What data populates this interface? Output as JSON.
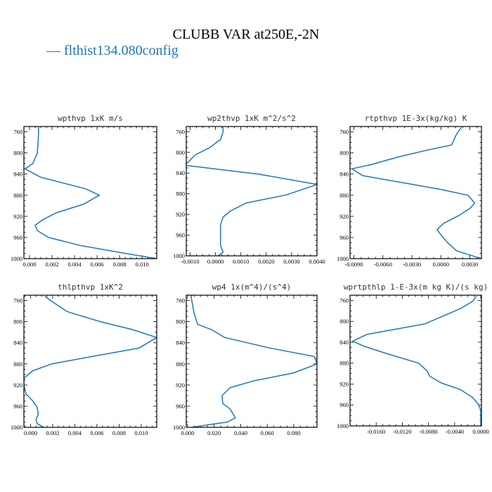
{
  "figure": {
    "title": "CLUBB VAR at250E,-2N",
    "legend": {
      "label": "— flthist134.080config",
      "color": "#1f77b4"
    },
    "line_color": "#1f77b4"
  },
  "chart_data": [
    {
      "type": "line",
      "title": "wpthvp  1xK m/s",
      "xlabel": "",
      "ylabel": "",
      "xlim": [
        -0.0005,
        0.0113
      ],
      "ylim": [
        1000,
        750
      ],
      "xticks": [
        0.0,
        0.002,
        0.004,
        0.006,
        0.008,
        0.01
      ],
      "xticklabels": [
        "0.000",
        "0.002",
        "0.004",
        "0.006",
        "0.008",
        "0.010"
      ],
      "yticks": [
        760,
        800,
        840,
        880,
        920,
        960,
        1000
      ],
      "yticklabels": [
        "760",
        "800",
        "840",
        "880",
        "920",
        "960",
        "1000"
      ],
      "series": [
        {
          "x": [
            0.0008,
            0.0008,
            0.0007,
            0.0003,
            -0.0004,
            0.001,
            0.005,
            0.0062,
            0.0048,
            0.0024,
            0.0012,
            0.0005,
            0.0007,
            0.0017,
            0.0045,
            0.0085,
            0.0113
          ],
          "y": [
            751,
            765,
            800,
            820,
            830,
            846,
            868,
            880,
            897,
            913,
            926,
            937,
            947,
            960,
            975,
            990,
            1000
          ]
        }
      ]
    },
    {
      "type": "line",
      "title": "wp2thvp  1xK m^2/s^2",
      "xlabel": "",
      "ylabel": "",
      "xlim": [
        -0.00115,
        0.004
      ],
      "ylim": [
        1000,
        750
      ],
      "xticks": [
        -0.001,
        0.0,
        0.001,
        0.002,
        0.003,
        0.004
      ],
      "xticklabels": [
        "-0.0010",
        "0.0000",
        "0.0010",
        "0.0020",
        "0.0030",
        "0.0040"
      ],
      "yticks": [
        760,
        800,
        840,
        880,
        920,
        960,
        1000
      ],
      "yticklabels": [
        "760",
        "800",
        "840",
        "880",
        "920",
        "960",
        "1000"
      ],
      "series": [
        {
          "x": [
            0.0003,
            0.0003,
            0.0002,
            -0.0002,
            -0.0008,
            -0.0012,
            0.0017,
            0.004,
            0.0028,
            0.0012,
            0.0006,
            0.0003,
            0.0002,
            0.0002,
            0.0002,
            0.0003,
            0.0001
          ],
          "y": [
            751,
            760,
            775,
            790,
            805,
            825,
            842,
            862,
            882,
            898,
            913,
            925,
            940,
            960,
            980,
            993,
            1000
          ]
        }
      ]
    },
    {
      "type": "line",
      "title": "rtpthvp  1E-3x(kg/kg) K",
      "xlabel": "",
      "ylabel": "",
      "xlim": [
        -0.0094,
        0.0042
      ],
      "ylim": [
        1000,
        750
      ],
      "xticks": [
        -0.009,
        -0.006,
        -0.003,
        0.0,
        0.003
      ],
      "xticklabels": [
        "-0.0090",
        "-0.0060",
        "-0.0030",
        "0.0000",
        "0.0030"
      ],
      "yticks": [
        760,
        800,
        840,
        880,
        920,
        960,
        1000
      ],
      "yticklabels": [
        "760",
        "800",
        "840",
        "880",
        "920",
        "960",
        "1000"
      ],
      "series": [
        {
          "x": [
            0.0021,
            0.0016,
            0.0011,
            -0.0015,
            -0.0045,
            -0.0072,
            -0.0092,
            -0.0081,
            -0.0003,
            0.0028,
            0.0035,
            0.003,
            0.0019,
            0.0003,
            -0.0004,
            0.0,
            0.0006,
            0.0016,
            0.0042
          ],
          "y": [
            752,
            765,
            785,
            795,
            808,
            822,
            830,
            843,
            868,
            880,
            895,
            905,
            918,
            933,
            945,
            955,
            968,
            985,
            1000
          ]
        }
      ]
    },
    {
      "type": "line",
      "title": "thlpthvp  1xK^2",
      "xlabel": "",
      "ylabel": "",
      "xlim": [
        -0.0006,
        0.0114
      ],
      "ylim": [
        1000,
        750
      ],
      "xticks": [
        0.0,
        0.002,
        0.004,
        0.006,
        0.008,
        0.01
      ],
      "xticklabels": [
        "0.000",
        "0.002",
        "0.004",
        "0.006",
        "0.008",
        "0.010"
      ],
      "yticks": [
        760,
        800,
        840,
        880,
        920,
        960,
        1000
      ],
      "yticklabels": [
        "760",
        "800",
        "840",
        "880",
        "920",
        "960",
        "1000"
      ],
      "series": [
        {
          "x": [
            0.0013,
            0.0018,
            0.0033,
            0.0063,
            0.0092,
            0.0114,
            0.0098,
            0.0058,
            0.0019,
            0.0002,
            -0.0006,
            -0.0006,
            -0.0004,
            0.0002,
            0.0006,
            0.0007,
            0.0005,
            0.0006,
            0.0012
          ],
          "y": [
            752,
            760,
            781,
            800,
            815,
            830,
            850,
            865,
            880,
            893,
            907,
            920,
            937,
            950,
            962,
            975,
            985,
            993,
            1000
          ]
        }
      ]
    },
    {
      "type": "line",
      "title": "wp4  1x(m^4)/(s^4)",
      "xlabel": "",
      "ylabel": "",
      "xlim": [
        -0.001,
        0.0975
      ],
      "ylim": [
        1000,
        750
      ],
      "xticks": [
        0.0,
        0.02,
        0.04,
        0.06,
        0.08
      ],
      "xticklabels": [
        "0.000",
        "0.020",
        "0.040",
        "0.060",
        "0.080"
      ],
      "yticks": [
        760,
        800,
        840,
        880,
        920,
        960,
        1000
      ],
      "yticklabels": [
        "760",
        "800",
        "840",
        "880",
        "920",
        "960",
        "1000"
      ],
      "series": [
        {
          "x": [
            0.0025,
            0.0035,
            0.005,
            0.0075,
            0.018,
            0.028,
            0.062,
            0.0955,
            0.0975,
            0.08,
            0.05,
            0.032,
            0.026,
            0.0265,
            0.032,
            0.036,
            0.03,
            0.016,
            0.003
          ],
          "y": [
            750,
            765,
            785,
            805,
            815,
            830,
            850,
            866,
            880,
            897,
            912,
            925,
            940,
            955,
            965,
            982,
            990,
            995,
            1000
          ]
        }
      ]
    },
    {
      "type": "line",
      "title": "wprtpthlp  1-E-3x(m kg K)/(s kg)",
      "xlabel": "",
      "ylabel": "",
      "xlim": [
        -0.02,
        0.0001
      ],
      "ylim": [
        1000,
        750
      ],
      "xticks": [
        -0.016,
        -0.012,
        -0.008,
        -0.004,
        0.0
      ],
      "xticklabels": [
        "-0.0160",
        "-0.0120",
        "-0.0080",
        "-0.0040",
        "0.0000"
      ],
      "yticks": [
        760,
        800,
        840,
        880,
        920,
        960,
        1000
      ],
      "yticklabels": [
        "760",
        "800",
        "840",
        "880",
        "920",
        "960",
        "1000"
      ],
      "series": [
        {
          "x": [
            -0.0007,
            -0.0012,
            -0.003,
            -0.0086,
            -0.0174,
            -0.0188,
            -0.0196,
            -0.0178,
            -0.0135,
            -0.0095,
            -0.0082,
            -0.0078,
            -0.006,
            -0.0032,
            -0.0013,
            -0.0004,
            0.0,
            0.0,
            0.0
          ],
          "y": [
            752,
            761,
            775,
            805,
            825,
            833,
            838,
            848,
            865,
            880,
            895,
            905,
            918,
            930,
            945,
            958,
            970,
            985,
            998
          ]
        }
      ]
    }
  ]
}
